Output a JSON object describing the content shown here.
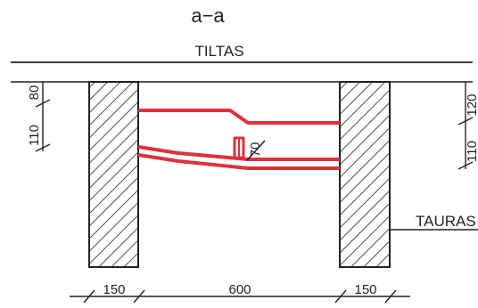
{
  "drawing": {
    "section_mark": "a−a",
    "bridge_label": "TILTAS",
    "stream_label": "TAURAS",
    "dims": {
      "left_h": "110",
      "left_h2": "80",
      "right_h": "110",
      "right_h2": "120",
      "pipe_gap": "70",
      "left_wall": "150",
      "span": "600",
      "right_wall": "150"
    }
  },
  "colors": {
    "line": "#222222",
    "reinforcement": "#e0303a",
    "hatch": "#222222"
  }
}
